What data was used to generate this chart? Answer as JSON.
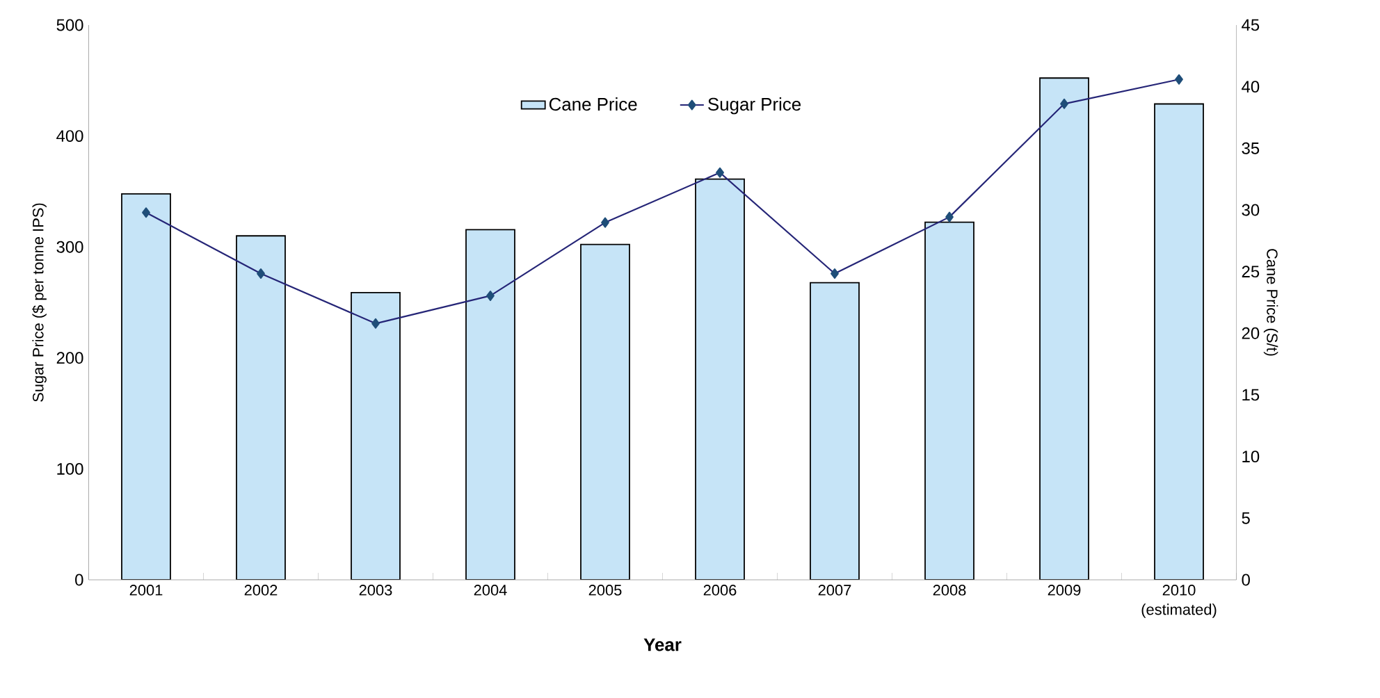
{
  "chart_data": {
    "type": "bar",
    "categories": [
      "2001",
      "2002",
      "2003",
      "2004",
      "2005",
      "2006",
      "2007",
      "2008",
      "2009",
      "2010 (estimated)"
    ],
    "series": [
      {
        "name": "Cane Price",
        "type": "bar",
        "axis": "y2",
        "color": "#c6e4f7",
        "values": [
          31.3,
          27.9,
          23.3,
          28.4,
          27.2,
          32.5,
          24.1,
          29.0,
          40.7,
          38.6
        ]
      },
      {
        "name": "Sugar Price",
        "type": "line",
        "color": "#252577",
        "values": [
          331,
          276,
          231,
          256,
          322,
          367,
          276,
          327,
          429,
          451
        ]
      }
    ],
    "xlabel": "Year",
    "ylabel": "Sugar Price ($ per tonne IPS)",
    "y2label": "Cane Price (S/t)",
    "ylim": [
      0,
      500
    ],
    "yticks": [
      0,
      100,
      200,
      300,
      400,
      500
    ],
    "y2lim": [
      0,
      45
    ],
    "y2ticks": [
      0,
      5,
      10,
      15,
      20,
      25,
      30,
      35,
      40,
      45
    ],
    "marker": "diamond",
    "line_style": "solid",
    "legend": "top",
    "grid": false
  }
}
